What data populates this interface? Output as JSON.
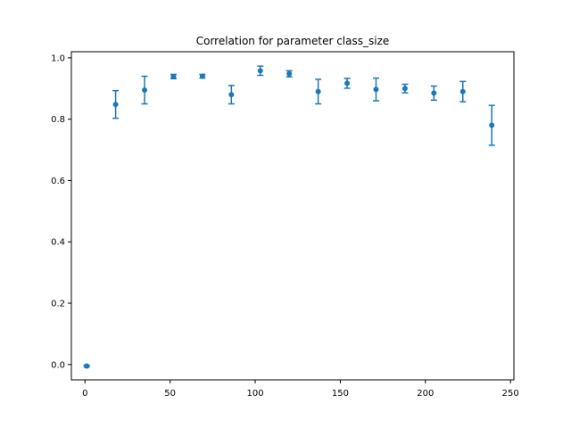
{
  "chart_data": {
    "type": "scatter",
    "title": "Correlation for parameter class_size",
    "xlabel": "",
    "ylabel": "",
    "xlim": [
      -8,
      252
    ],
    "ylim": [
      -0.05,
      1.02
    ],
    "xticks": [
      0,
      50,
      100,
      150,
      200,
      250
    ],
    "yticks": [
      0.0,
      0.2,
      0.4,
      0.6,
      0.8,
      1.0
    ],
    "ytick_labels": [
      "0.0",
      "0.2",
      "0.4",
      "0.6",
      "0.8",
      "1.0"
    ],
    "grid": false,
    "color": "#1f77b4",
    "series": [
      {
        "points": [
          {
            "x": 1,
            "y": -0.005,
            "err": 0.003
          },
          {
            "x": 18,
            "y": 0.848,
            "err": 0.045
          },
          {
            "x": 35,
            "y": 0.895,
            "err": 0.045
          },
          {
            "x": 52,
            "y": 0.939,
            "err": 0.007
          },
          {
            "x": 69,
            "y": 0.94,
            "err": 0.006
          },
          {
            "x": 86,
            "y": 0.88,
            "err": 0.03
          },
          {
            "x": 103,
            "y": 0.958,
            "err": 0.015
          },
          {
            "x": 120,
            "y": 0.948,
            "err": 0.01
          },
          {
            "x": 137,
            "y": 0.89,
            "err": 0.04
          },
          {
            "x": 154,
            "y": 0.917,
            "err": 0.016
          },
          {
            "x": 171,
            "y": 0.897,
            "err": 0.037
          },
          {
            "x": 188,
            "y": 0.9,
            "err": 0.014
          },
          {
            "x": 205,
            "y": 0.885,
            "err": 0.023
          },
          {
            "x": 222,
            "y": 0.89,
            "err": 0.033
          },
          {
            "x": 239,
            "y": 0.78,
            "err": 0.065
          }
        ]
      }
    ]
  }
}
